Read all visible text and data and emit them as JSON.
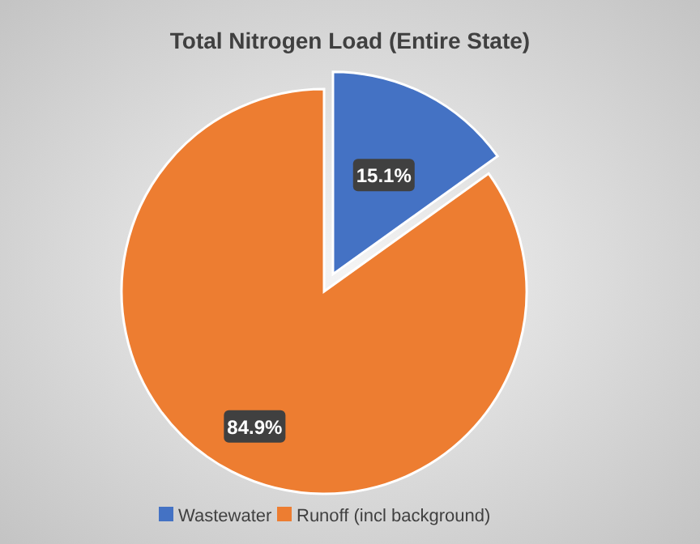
{
  "chart_data": {
    "type": "pie",
    "title": "Total Nitrogen Load (Entire State)",
    "categories": [
      "Wastewater",
      "Runoff (incl background)"
    ],
    "values": [
      15.1,
      84.9
    ],
    "colors": [
      "#4472c4",
      "#ed7d31"
    ],
    "value_labels": [
      "15.1%",
      "84.9%"
    ],
    "legend": "bottom"
  }
}
